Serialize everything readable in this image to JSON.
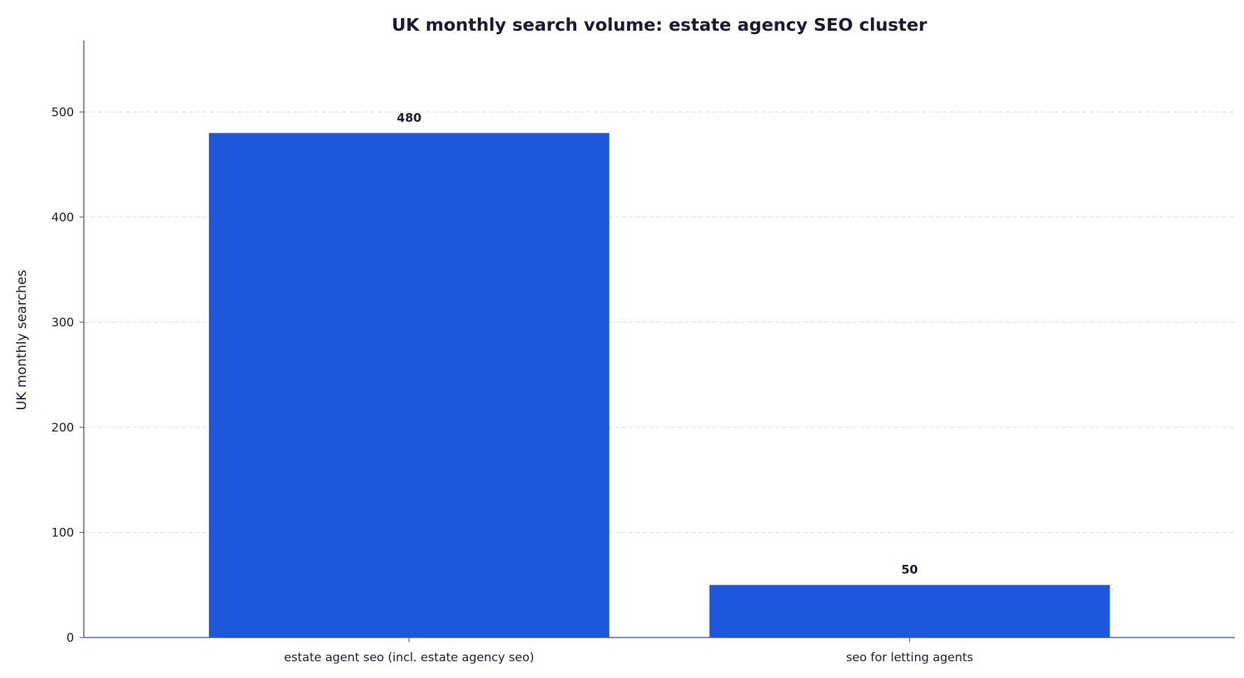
{
  "chart_data": {
    "type": "bar",
    "title": "UK monthly search volume: estate agency SEO cluster",
    "xlabel": "",
    "ylabel": "UK monthly searches",
    "categories": [
      "estate agent seo (incl. estate agency seo)",
      "seo for letting agents"
    ],
    "values": [
      480,
      50
    ],
    "value_labels": [
      "480",
      "50"
    ],
    "ylim": [
      0,
      568
    ],
    "yticks": [
      0,
      100,
      200,
      300,
      400,
      500
    ],
    "ytick_labels": [
      "0",
      "100",
      "200",
      "300",
      "400",
      "500"
    ],
    "grid": "y-dashed",
    "legend": "none",
    "colors": {
      "bar": "#1c57dc",
      "axis": "#4a5f7a",
      "grid": "#e0e0e0",
      "text": "#1a1a2e"
    }
  }
}
